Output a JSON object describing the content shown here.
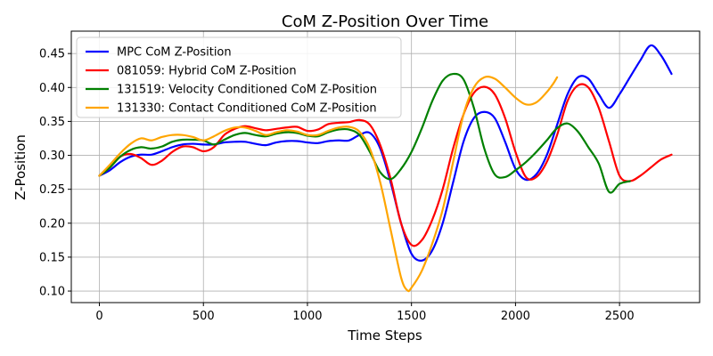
{
  "chart_data": {
    "type": "line",
    "title": "CoM Z-Position Over Time",
    "xlabel": "Time Steps",
    "ylabel": "Z-Position",
    "xlim": [
      -135,
      2885
    ],
    "ylim": [
      0.083,
      0.483
    ],
    "xticks": [
      0,
      500,
      1000,
      1500,
      2000,
      2500
    ],
    "yticks": [
      0.1,
      0.15,
      0.2,
      0.25,
      0.3,
      0.35,
      0.4,
      0.45
    ],
    "grid": true,
    "legend_position": "upper-left",
    "series": [
      {
        "name": "MPC CoM Z-Position",
        "color": "#0000ff",
        "points": [
          [
            0,
            0.27
          ],
          [
            50,
            0.278
          ],
          [
            100,
            0.29
          ],
          [
            150,
            0.298
          ],
          [
            200,
            0.301
          ],
          [
            250,
            0.301
          ],
          [
            300,
            0.306
          ],
          [
            350,
            0.312
          ],
          [
            400,
            0.316
          ],
          [
            450,
            0.317
          ],
          [
            500,
            0.316
          ],
          [
            550,
            0.316
          ],
          [
            600,
            0.319
          ],
          [
            650,
            0.32
          ],
          [
            700,
            0.32
          ],
          [
            750,
            0.317
          ],
          [
            800,
            0.315
          ],
          [
            850,
            0.319
          ],
          [
            900,
            0.321
          ],
          [
            950,
            0.321
          ],
          [
            1000,
            0.319
          ],
          [
            1050,
            0.318
          ],
          [
            1100,
            0.321
          ],
          [
            1150,
            0.322
          ],
          [
            1200,
            0.322
          ],
          [
            1250,
            0.33
          ],
          [
            1300,
            0.333
          ],
          [
            1350,
            0.31
          ],
          [
            1400,
            0.26
          ],
          [
            1450,
            0.2
          ],
          [
            1500,
            0.155
          ],
          [
            1550,
            0.145
          ],
          [
            1600,
            0.16
          ],
          [
            1650,
            0.2
          ],
          [
            1700,
            0.26
          ],
          [
            1750,
            0.32
          ],
          [
            1800,
            0.355
          ],
          [
            1850,
            0.364
          ],
          [
            1900,
            0.355
          ],
          [
            1950,
            0.32
          ],
          [
            2000,
            0.28
          ],
          [
            2050,
            0.264
          ],
          [
            2100,
            0.272
          ],
          [
            2150,
            0.3
          ],
          [
            2200,
            0.345
          ],
          [
            2250,
            0.39
          ],
          [
            2300,
            0.415
          ],
          [
            2350,
            0.413
          ],
          [
            2400,
            0.39
          ],
          [
            2450,
            0.37
          ],
          [
            2500,
            0.39
          ],
          [
            2550,
            0.415
          ],
          [
            2600,
            0.44
          ],
          [
            2650,
            0.462
          ],
          [
            2700,
            0.447
          ],
          [
            2750,
            0.42
          ]
        ]
      },
      {
        "name": "081059: Hybrid CoM Z-Position",
        "color": "#ff0000",
        "points": [
          [
            0,
            0.27
          ],
          [
            50,
            0.282
          ],
          [
            100,
            0.298
          ],
          [
            150,
            0.302
          ],
          [
            200,
            0.296
          ],
          [
            250,
            0.286
          ],
          [
            300,
            0.292
          ],
          [
            350,
            0.305
          ],
          [
            400,
            0.313
          ],
          [
            450,
            0.312
          ],
          [
            500,
            0.306
          ],
          [
            550,
            0.312
          ],
          [
            600,
            0.33
          ],
          [
            650,
            0.339
          ],
          [
            700,
            0.343
          ],
          [
            750,
            0.34
          ],
          [
            800,
            0.337
          ],
          [
            850,
            0.339
          ],
          [
            900,
            0.341
          ],
          [
            950,
            0.342
          ],
          [
            1000,
            0.336
          ],
          [
            1050,
            0.338
          ],
          [
            1100,
            0.346
          ],
          [
            1150,
            0.348
          ],
          [
            1200,
            0.349
          ],
          [
            1250,
            0.352
          ],
          [
            1300,
            0.345
          ],
          [
            1350,
            0.315
          ],
          [
            1400,
            0.265
          ],
          [
            1450,
            0.2
          ],
          [
            1500,
            0.168
          ],
          [
            1550,
            0.175
          ],
          [
            1600,
            0.205
          ],
          [
            1650,
            0.25
          ],
          [
            1700,
            0.31
          ],
          [
            1750,
            0.36
          ],
          [
            1800,
            0.392
          ],
          [
            1850,
            0.401
          ],
          [
            1900,
            0.39
          ],
          [
            1950,
            0.355
          ],
          [
            2000,
            0.305
          ],
          [
            2050,
            0.268
          ],
          [
            2100,
            0.268
          ],
          [
            2150,
            0.29
          ],
          [
            2200,
            0.33
          ],
          [
            2250,
            0.38
          ],
          [
            2300,
            0.403
          ],
          [
            2350,
            0.4
          ],
          [
            2400,
            0.37
          ],
          [
            2450,
            0.32
          ],
          [
            2500,
            0.27
          ],
          [
            2550,
            0.262
          ],
          [
            2600,
            0.27
          ],
          [
            2650,
            0.282
          ],
          [
            2700,
            0.294
          ],
          [
            2750,
            0.301
          ]
        ]
      },
      {
        "name": "131519: Velocity Conditioned CoM Z-Position",
        "color": "#008000",
        "points": [
          [
            0,
            0.27
          ],
          [
            50,
            0.282
          ],
          [
            100,
            0.298
          ],
          [
            150,
            0.308
          ],
          [
            200,
            0.312
          ],
          [
            250,
            0.31
          ],
          [
            300,
            0.313
          ],
          [
            350,
            0.32
          ],
          [
            400,
            0.323
          ],
          [
            450,
            0.323
          ],
          [
            500,
            0.322
          ],
          [
            550,
            0.316
          ],
          [
            600,
            0.323
          ],
          [
            650,
            0.33
          ],
          [
            700,
            0.333
          ],
          [
            750,
            0.33
          ],
          [
            800,
            0.328
          ],
          [
            850,
            0.332
          ],
          [
            900,
            0.334
          ],
          [
            950,
            0.333
          ],
          [
            1000,
            0.329
          ],
          [
            1050,
            0.328
          ],
          [
            1100,
            0.334
          ],
          [
            1150,
            0.338
          ],
          [
            1200,
            0.338
          ],
          [
            1250,
            0.33
          ],
          [
            1300,
            0.305
          ],
          [
            1350,
            0.275
          ],
          [
            1400,
            0.265
          ],
          [
            1450,
            0.28
          ],
          [
            1500,
            0.305
          ],
          [
            1550,
            0.34
          ],
          [
            1600,
            0.38
          ],
          [
            1650,
            0.41
          ],
          [
            1700,
            0.42
          ],
          [
            1750,
            0.412
          ],
          [
            1800,
            0.37
          ],
          [
            1850,
            0.31
          ],
          [
            1900,
            0.272
          ],
          [
            1950,
            0.268
          ],
          [
            2000,
            0.278
          ],
          [
            2050,
            0.29
          ],
          [
            2100,
            0.305
          ],
          [
            2150,
            0.322
          ],
          [
            2200,
            0.34
          ],
          [
            2250,
            0.347
          ],
          [
            2300,
            0.335
          ],
          [
            2350,
            0.312
          ],
          [
            2400,
            0.288
          ],
          [
            2450,
            0.246
          ],
          [
            2500,
            0.258
          ],
          [
            2550,
            0.262
          ]
        ]
      },
      {
        "name": "131330: Contact Conditioned CoM Z-Position",
        "color": "#ffa500",
        "points": [
          [
            0,
            0.27
          ],
          [
            50,
            0.286
          ],
          [
            100,
            0.303
          ],
          [
            150,
            0.317
          ],
          [
            200,
            0.325
          ],
          [
            250,
            0.322
          ],
          [
            300,
            0.327
          ],
          [
            350,
            0.33
          ],
          [
            400,
            0.33
          ],
          [
            450,
            0.327
          ],
          [
            500,
            0.322
          ],
          [
            550,
            0.328
          ],
          [
            600,
            0.336
          ],
          [
            650,
            0.341
          ],
          [
            700,
            0.341
          ],
          [
            750,
            0.336
          ],
          [
            800,
            0.33
          ],
          [
            850,
            0.334
          ],
          [
            900,
            0.337
          ],
          [
            950,
            0.335
          ],
          [
            1000,
            0.33
          ],
          [
            1050,
            0.33
          ],
          [
            1100,
            0.336
          ],
          [
            1150,
            0.341
          ],
          [
            1200,
            0.342
          ],
          [
            1250,
            0.335
          ],
          [
            1300,
            0.31
          ],
          [
            1350,
            0.26
          ],
          [
            1400,
            0.19
          ],
          [
            1450,
            0.12
          ],
          [
            1480,
            0.101
          ],
          [
            1500,
            0.105
          ],
          [
            1550,
            0.13
          ],
          [
            1600,
            0.17
          ],
          [
            1650,
            0.22
          ],
          [
            1700,
            0.29
          ],
          [
            1750,
            0.36
          ],
          [
            1800,
            0.4
          ],
          [
            1850,
            0.415
          ],
          [
            1900,
            0.413
          ],
          [
            1950,
            0.4
          ],
          [
            2000,
            0.385
          ],
          [
            2050,
            0.375
          ],
          [
            2100,
            0.378
          ],
          [
            2150,
            0.393
          ],
          [
            2180,
            0.405
          ],
          [
            2200,
            0.415
          ]
        ]
      }
    ]
  }
}
